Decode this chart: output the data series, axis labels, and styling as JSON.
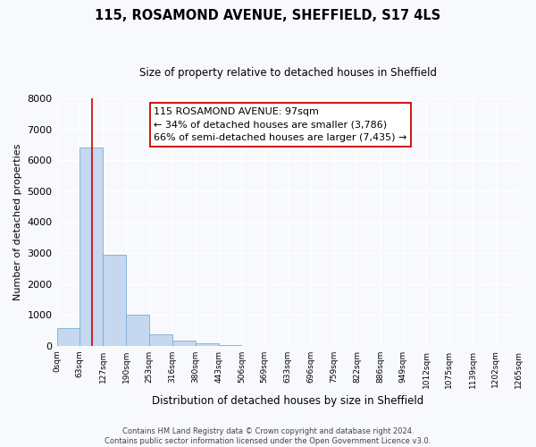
{
  "title": "115, ROSAMOND AVENUE, SHEFFIELD, S17 4LS",
  "subtitle": "Size of property relative to detached houses in Sheffield",
  "xlabel": "Distribution of detached houses by size in Sheffield",
  "ylabel": "Number of detached properties",
  "bin_edges": [
    0,
    63,
    127,
    190,
    253,
    316,
    380,
    443,
    506,
    569,
    633,
    696,
    759,
    822,
    886,
    949,
    1012,
    1075,
    1139,
    1202,
    1265
  ],
  "bin_labels": [
    "0sqm",
    "63sqm",
    "127sqm",
    "190sqm",
    "253sqm",
    "316sqm",
    "380sqm",
    "443sqm",
    "506sqm",
    "569sqm",
    "633sqm",
    "696sqm",
    "759sqm",
    "822sqm",
    "886sqm",
    "949sqm",
    "1012sqm",
    "1075sqm",
    "1139sqm",
    "1202sqm",
    "1265sqm"
  ],
  "bar_heights": [
    560,
    6400,
    2950,
    990,
    380,
    175,
    80,
    30,
    0,
    0,
    0,
    0,
    0,
    0,
    0,
    0,
    0,
    0,
    0,
    0
  ],
  "bar_color": "#c5d8ef",
  "bar_edge_color": "#7aadd4",
  "vline_color": "#cc0000",
  "vline_x": 97,
  "ylim": [
    0,
    8000
  ],
  "yticks": [
    0,
    1000,
    2000,
    3000,
    4000,
    5000,
    6000,
    7000,
    8000
  ],
  "annotation_text": "115 ROSAMOND AVENUE: 97sqm\n← 34% of detached houses are smaller (3,786)\n66% of semi-detached houses are larger (7,435) →",
  "annotation_box_color": "#ffffff",
  "annotation_box_edge": "#cc0000",
  "footer_line1": "Contains HM Land Registry data © Crown copyright and database right 2024.",
  "footer_line2": "Contains public sector information licensed under the Open Government Licence v3.0.",
  "fig_bg_color": "#f7f9fd",
  "plot_bg_color": "#f7f9fd",
  "grid_color": "#ffffff",
  "title_fontsize": 10.5,
  "subtitle_fontsize": 8.5,
  "ylabel_fontsize": 8,
  "xlabel_fontsize": 8.5,
  "ytick_fontsize": 8,
  "xtick_fontsize": 6.5,
  "annot_fontsize": 8,
  "footer_fontsize": 6
}
